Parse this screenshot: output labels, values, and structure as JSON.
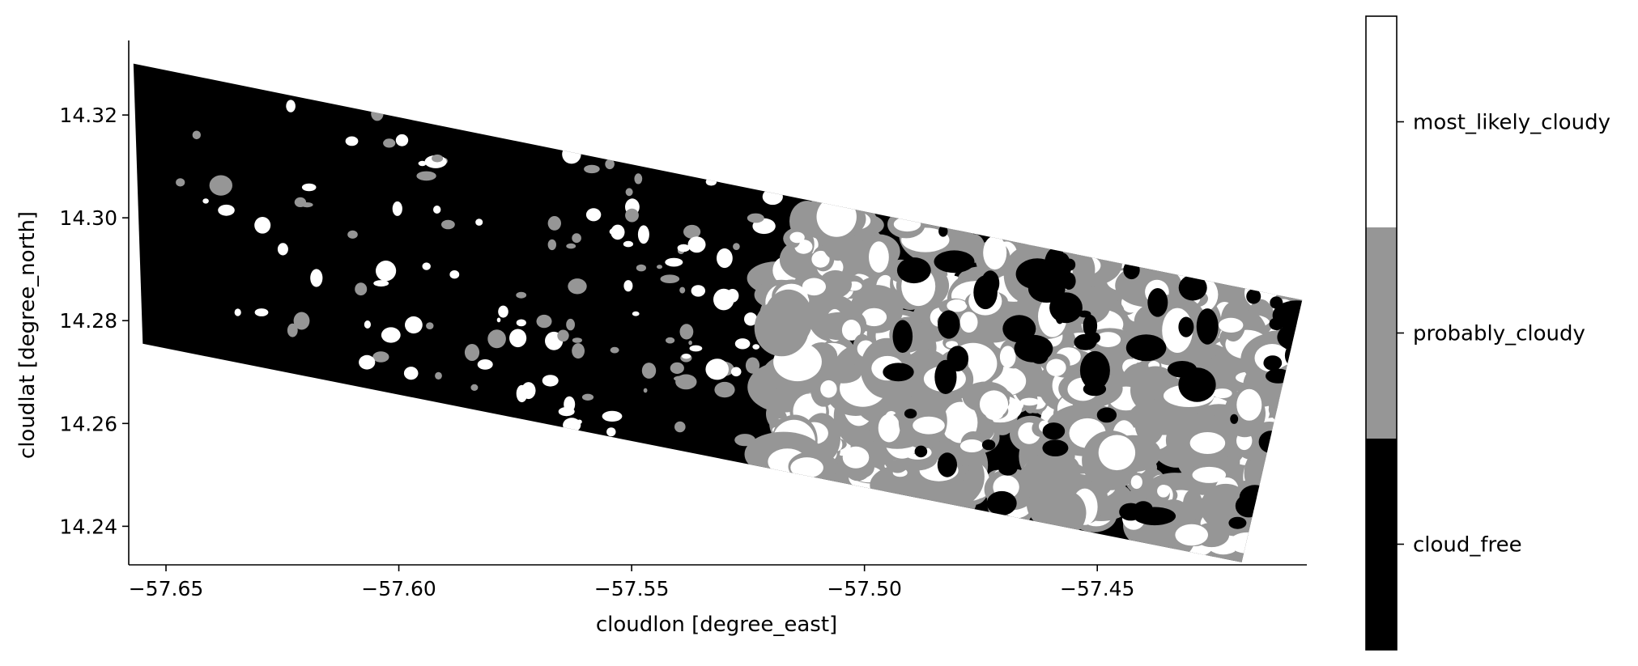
{
  "chart_data": {
    "type": "heatmap",
    "title": "",
    "xlabel": "cloudlon [degree_east]",
    "ylabel": "cloudlat [degree_north]",
    "xlim": [
      -57.658,
      -57.405
    ],
    "ylim": [
      14.2325,
      14.3345
    ],
    "x_ticks": [
      {
        "value": -57.65,
        "label": "−57.65"
      },
      {
        "value": -57.6,
        "label": "−57.60"
      },
      {
        "value": -57.55,
        "label": "−57.55"
      },
      {
        "value": -57.5,
        "label": "−57.50"
      },
      {
        "value": -57.45,
        "label": "−57.45"
      }
    ],
    "y_ticks": [
      {
        "value": 14.24,
        "label": "14.24"
      },
      {
        "value": 14.26,
        "label": "14.26"
      },
      {
        "value": 14.28,
        "label": "14.28"
      },
      {
        "value": 14.3,
        "label": "14.30"
      },
      {
        "value": 14.32,
        "label": "14.32"
      }
    ],
    "swath_corners": [
      {
        "lon": -57.657,
        "lat": 14.33
      },
      {
        "lon": -57.406,
        "lat": 14.284
      },
      {
        "lon": -57.419,
        "lat": 14.233
      },
      {
        "lon": -57.655,
        "lat": 14.2755
      }
    ],
    "categories": [
      {
        "value": 0,
        "label": "cloud_free",
        "color": "#000000"
      },
      {
        "value": 1,
        "label": "probably_cloudy",
        "color": "#969696"
      },
      {
        "value": 2,
        "label": "most_likely_cloudy",
        "color": "#ffffff"
      }
    ],
    "cloud_field_note_free": "",
    "spine_color": "#000000"
  }
}
